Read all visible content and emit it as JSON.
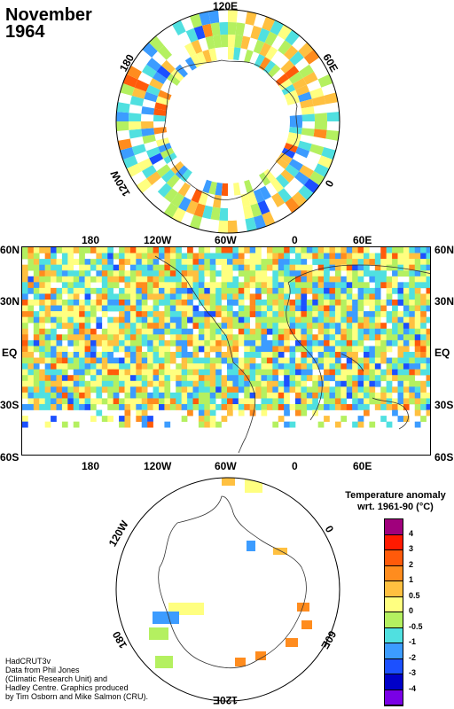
{
  "title": {
    "month": "November",
    "year": "1964"
  },
  "north_polar": {
    "labels": {
      "top": "120E",
      "left": "180",
      "right": "60E",
      "bottom_left": "120W",
      "bottom_right": "0"
    }
  },
  "south_polar": {
    "labels": {
      "top_left": "120W",
      "top_right": "0",
      "bottom_left": "180",
      "bottom_right": "60E",
      "bottom": "120E"
    }
  },
  "main_map": {
    "top_lon_labels": [
      "180",
      "120W",
      "60W",
      "0",
      "60E"
    ],
    "bottom_lon_labels": [
      "180",
      "120W",
      "60W",
      "0",
      "60E"
    ],
    "lat_labels_left": [
      "60N",
      "30N",
      "EQ",
      "30S",
      "60S"
    ],
    "lat_labels_right": [
      "60N",
      "30N",
      "EQ",
      "30S",
      "60S"
    ]
  },
  "legend": {
    "title_line1": "Temperature anomaly",
    "title_line2": "wrt. 1961-90  (°C)",
    "ticks": [
      "4",
      "3",
      "2",
      "1",
      "0.5",
      "0",
      "-0.5",
      "-1",
      "-2",
      "-3",
      "-4"
    ],
    "colors": [
      "#a0007c",
      "#ff1a00",
      "#ff5a0a",
      "#ff8c1e",
      "#ffc040",
      "#ffff80",
      "#b4f060",
      "#50e0e0",
      "#3c9cff",
      "#1c50ff",
      "#0000c8",
      "#7a00e6"
    ]
  },
  "credits": [
    "HadCRUT3v",
    "Data from Phil Jones",
    "(Climatic Research Unit) and",
    "Hadley Centre.  Graphics produced",
    "by Tim Osborn and Mike Salmon (CRU)."
  ]
}
